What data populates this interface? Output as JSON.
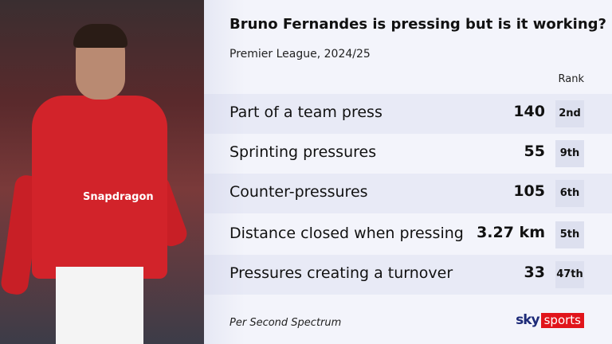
{
  "header": {
    "title": "Bruno Fernandes is pressing but is it working?",
    "subtitle": "Premier League, 2024/25",
    "rank_header": "Rank"
  },
  "rows": [
    {
      "label": "Part of a team press",
      "value": "140",
      "rank": "2nd"
    },
    {
      "label": "Sprinting pressures",
      "value": "55",
      "rank": "9th"
    },
    {
      "label": "Counter-pressures",
      "value": "105",
      "rank": "6th"
    },
    {
      "label": "Distance closed when pressing",
      "value": "3.27 km",
      "rank": "5th"
    },
    {
      "label": "Pressures creating a turnover",
      "value": "33",
      "rank": "47th"
    }
  ],
  "footer": {
    "source": "Per Second Spectrum",
    "logo_sky": "sky",
    "logo_sports": "sports"
  },
  "photo": {
    "sponsor": "Snapdragon"
  },
  "colors": {
    "accent_red": "#e1141b",
    "sky_blue": "#1c2a78",
    "rank_box": "#dde0ef"
  }
}
